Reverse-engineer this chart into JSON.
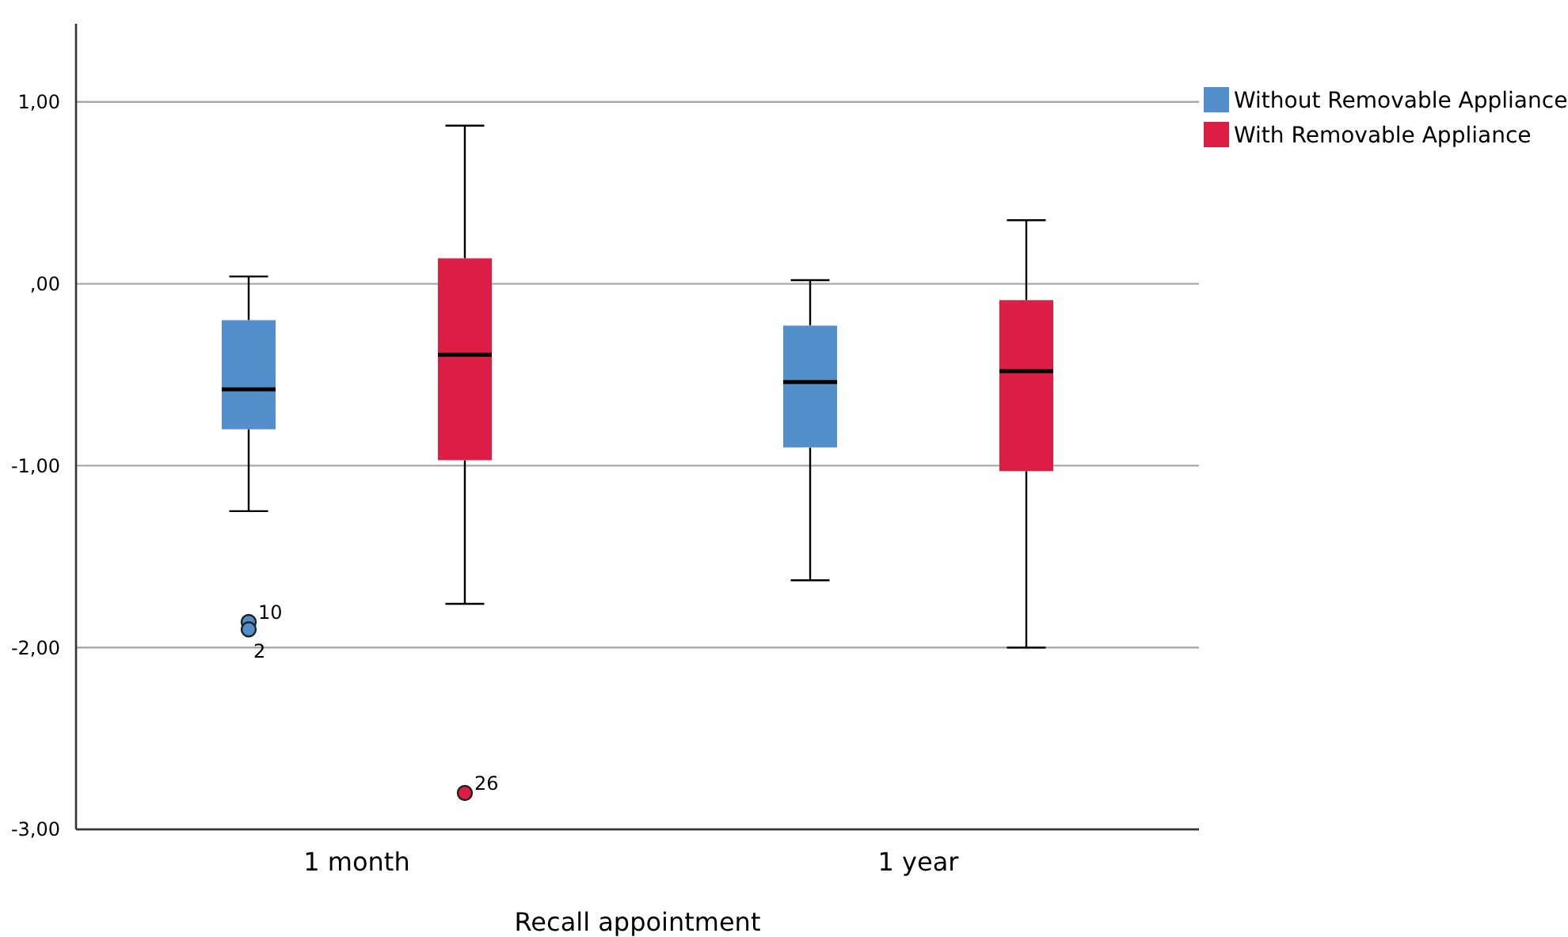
{
  "chart_data": {
    "type": "box",
    "xlabel": "Recall appointment",
    "categories": [
      "1 month",
      "1 year"
    ],
    "series": [
      {
        "name": "Without Removable Appliance",
        "color": "#5390cb",
        "boxes": [
          {
            "low": -1.25,
            "q1": -0.8,
            "median": -0.58,
            "q3": -0.2,
            "high": 0.04,
            "outliers": [
              -1.86,
              -1.9
            ]
          },
          {
            "low": -1.63,
            "q1": -0.9,
            "median": -0.54,
            "q3": -0.23,
            "high": 0.02
          }
        ]
      },
      {
        "name": "With Removable Appliance",
        "color": "#dc1e44",
        "boxes": [
          {
            "low": -1.76,
            "q1": -0.97,
            "median": -0.39,
            "q3": 0.14,
            "high": 0.87,
            "outliers": [
              -2.8
            ]
          },
          {
            "low": -2.0,
            "q1": -1.03,
            "median": -0.48,
            "q3": -0.09,
            "high": 0.35
          }
        ]
      }
    ],
    "ylim": [
      -3,
      1.43
    ],
    "yticks": [
      {
        "value": 1,
        "label": "1,00"
      },
      {
        "value": 0,
        "label": ",00"
      },
      {
        "value": -1,
        "label": "-1,00"
      },
      {
        "value": -2,
        "label": "-2,00"
      },
      {
        "value": -3,
        "label": "-3,00"
      }
    ],
    "grid": "y",
    "legend": "top right",
    "annotations": [
      "10",
      "2",
      "26"
    ]
  }
}
